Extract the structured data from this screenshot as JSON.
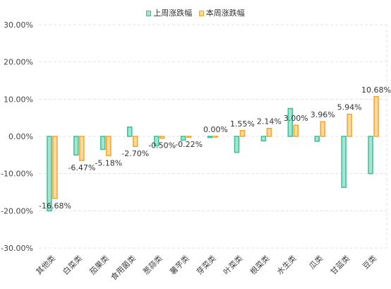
{
  "chart_data": {
    "type": "bar",
    "categories": [
      "其他类",
      "白菜类",
      "茄果类",
      "食用菌类",
      "葱蒜类",
      "薯芋类",
      "芽菜类",
      "叶菜类",
      "根菜类",
      "水生类",
      "瓜类",
      "甘蓝类",
      "豆类"
    ],
    "series": [
      {
        "name": "上周涨跌幅",
        "values": [
          -20.0,
          -5.0,
          -3.5,
          2.5,
          -2.5,
          -1.0,
          -0.3,
          -4.3,
          -1.2,
          7.5,
          -1.3,
          -13.7,
          -10.0
        ],
        "fill": "#a6e3d0",
        "stroke": "#3cbf97"
      },
      {
        "name": "本周涨跌幅",
        "values": [
          -16.68,
          -6.47,
          -5.18,
          -2.7,
          -0.5,
          -0.22,
          0.0,
          1.55,
          2.14,
          3.0,
          3.96,
          5.94,
          10.68
        ],
        "fill": "#fcd9a3",
        "stroke": "#f4a52c"
      }
    ],
    "data_labels": [
      "-16.68%",
      "-6.47%",
      "-5.18%",
      "-2.70%",
      "-0.50%",
      "-0.22%",
      "0.00%",
      "1.55%",
      "2.14%",
      "3.00%",
      "3.96%",
      "5.94%",
      "10.68%"
    ],
    "y_ticks": [
      "30.00%",
      "20.00%",
      "10.00%",
      "0.00%",
      "-10.00%",
      "-20.00%",
      "-30.00%"
    ],
    "ylim": [
      -30,
      30
    ],
    "title": "",
    "xlabel": "",
    "ylabel": "",
    "grid": true,
    "legend_position": "top-center"
  }
}
